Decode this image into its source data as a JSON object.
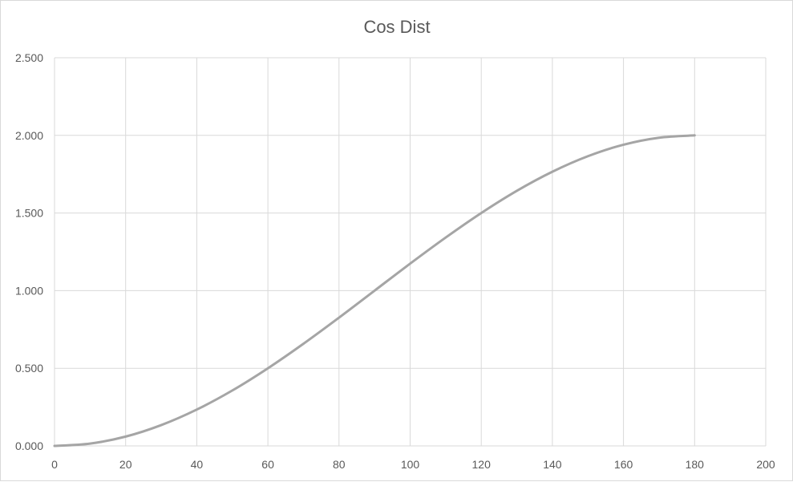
{
  "chart_data": {
    "type": "line",
    "title": "Cos Dist",
    "xlabel": "",
    "ylabel": "",
    "xlim": [
      0,
      200
    ],
    "ylim": [
      0,
      2.5
    ],
    "xticks": [
      0,
      20,
      40,
      60,
      80,
      100,
      120,
      140,
      160,
      180,
      200
    ],
    "yticks": [
      "0.000",
      "0.500",
      "1.000",
      "1.500",
      "2.000",
      "2.500"
    ],
    "grid": true,
    "legend": "none",
    "series": [
      {
        "color": "#a5a5a5",
        "x": [
          0,
          10,
          20,
          30,
          40,
          50,
          60,
          70,
          80,
          90,
          100,
          110,
          120,
          130,
          140,
          150,
          160,
          170,
          180
        ],
        "y": [
          0,
          0.015,
          0.06,
          0.134,
          0.234,
          0.357,
          0.5,
          0.658,
          0.826,
          1.0,
          1.174,
          1.342,
          1.5,
          1.643,
          1.766,
          1.866,
          1.94,
          1.985,
          2.0
        ]
      }
    ]
  }
}
